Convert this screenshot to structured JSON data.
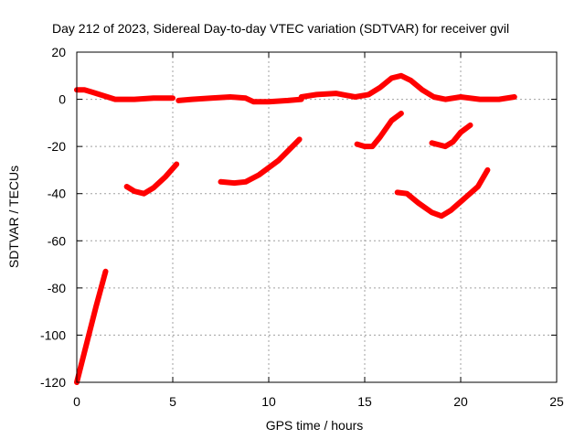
{
  "chart_data": {
    "type": "scatter",
    "title": "Day 212 of 2023, Sidereal Day-to-day VTEC variation (SDTVAR) for receiver gvil",
    "xlabel": "GPS time / hours",
    "ylabel": "SDTVAR / TECUs",
    "xlim": [
      0,
      25
    ],
    "ylim": [
      -120,
      20
    ],
    "xticks": [
      "0",
      "5",
      "10",
      "15",
      "20",
      "25"
    ],
    "yticks": [
      "20",
      "0",
      "-20",
      "-40",
      "-60",
      "-80",
      "-100",
      "-120"
    ],
    "grid": true,
    "color": "#ff0000",
    "segments": [
      {
        "points": [
          [
            0.0,
            -120
          ],
          [
            0.5,
            -104
          ],
          [
            1.0,
            -88
          ],
          [
            1.5,
            -73
          ]
        ]
      },
      {
        "points": [
          [
            0.0,
            4
          ],
          [
            0.4,
            4
          ],
          [
            0.8,
            3
          ],
          [
            1.2,
            2
          ],
          [
            1.6,
            1
          ],
          [
            2.0,
            0
          ],
          [
            3.0,
            0
          ],
          [
            4.0,
            0.5
          ],
          [
            5.0,
            0.5
          ]
        ]
      },
      {
        "points": [
          [
            5.3,
            -0.5
          ],
          [
            6.0,
            0
          ],
          [
            7.0,
            0.5
          ],
          [
            8.0,
            1
          ],
          [
            8.8,
            0.5
          ],
          [
            9.2,
            -1
          ],
          [
            10.0,
            -1
          ],
          [
            11.0,
            -0.5
          ],
          [
            11.7,
            0
          ]
        ]
      },
      {
        "points": [
          [
            11.7,
            1
          ],
          [
            12.5,
            2
          ],
          [
            13.5,
            2.5
          ],
          [
            14.5,
            1
          ],
          [
            15.2,
            2
          ],
          [
            15.8,
            5
          ],
          [
            16.4,
            9
          ],
          [
            16.9,
            10
          ],
          [
            17.4,
            8
          ],
          [
            18.0,
            4
          ],
          [
            18.6,
            1
          ],
          [
            19.2,
            0
          ],
          [
            20.0,
            1
          ],
          [
            21.0,
            0
          ],
          [
            22.0,
            0
          ],
          [
            22.8,
            1
          ]
        ]
      },
      {
        "points": [
          [
            2.6,
            -37
          ],
          [
            3.0,
            -39
          ],
          [
            3.5,
            -40
          ],
          [
            4.0,
            -37.5
          ],
          [
            4.6,
            -33
          ],
          [
            5.2,
            -27.5
          ]
        ]
      },
      {
        "points": [
          [
            7.5,
            -35
          ],
          [
            8.2,
            -35.5
          ],
          [
            8.8,
            -35
          ],
          [
            9.5,
            -32
          ],
          [
            10.5,
            -26
          ],
          [
            11.6,
            -17
          ]
        ]
      },
      {
        "points": [
          [
            14.6,
            -19
          ],
          [
            15.0,
            -20
          ],
          [
            15.4,
            -20
          ],
          [
            15.8,
            -16
          ],
          [
            16.4,
            -9
          ],
          [
            16.9,
            -6
          ]
        ]
      },
      {
        "points": [
          [
            16.7,
            -39.5
          ],
          [
            17.2,
            -40
          ],
          [
            17.8,
            -44
          ],
          [
            18.5,
            -48
          ],
          [
            19.0,
            -49.5
          ],
          [
            19.5,
            -47
          ],
          [
            20.2,
            -42
          ],
          [
            20.9,
            -37
          ],
          [
            21.4,
            -30
          ]
        ]
      },
      {
        "points": [
          [
            18.5,
            -18.5
          ],
          [
            19.2,
            -20
          ],
          [
            19.6,
            -18
          ],
          [
            20.0,
            -14
          ],
          [
            20.5,
            -11
          ]
        ]
      }
    ]
  }
}
